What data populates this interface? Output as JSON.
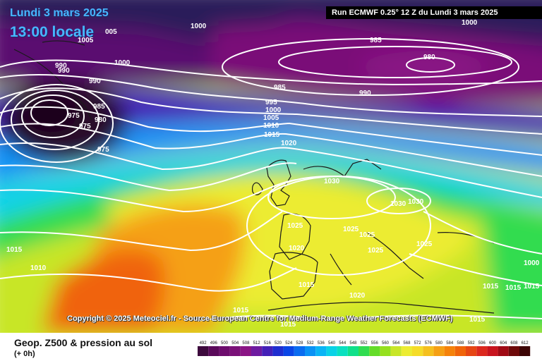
{
  "header": {
    "date": "Lundi 3 mars 2025",
    "local_time": "13:00 locale",
    "run_info": "Run ECMWF 0.25° 12 Z du Lundi 3 mars 2025"
  },
  "copyright": "Copyright © 2025 Meteociel.fr - Source European Centre for Medium-Range Weather Forecasts (ECMWF)",
  "legend": {
    "title": "Geop. Z500 & pression au sol",
    "subtitle": "(+ 0h)",
    "scale_values": [
      "492",
      "496",
      "500",
      "504",
      "508",
      "512",
      "516",
      "520",
      "524",
      "528",
      "532",
      "536",
      "540",
      "544",
      "548",
      "552",
      "556",
      "560",
      "564",
      "568",
      "572",
      "576",
      "580",
      "584",
      "588",
      "592",
      "596",
      "600",
      "604",
      "608",
      "612"
    ],
    "scale_colors": [
      "#3d0a3d",
      "#5a0a5a",
      "#6d0d6d",
      "#7a1078",
      "#8a1585",
      "#6e1aa0",
      "#4420b8",
      "#1f2ed0",
      "#0a46e6",
      "#0a6cf0",
      "#0a92f5",
      "#0ab4f5",
      "#0ad2e6",
      "#0ae0c0",
      "#10e08a",
      "#30dc50",
      "#64dc28",
      "#96e01e",
      "#c8e628",
      "#ecec32",
      "#f5dc28",
      "#f5c01e",
      "#f5a014",
      "#f5820a",
      "#f0640a",
      "#e64614",
      "#dc281e",
      "#c8141e",
      "#a00a14",
      "#6e0a0a",
      "#3c0505"
    ]
  },
  "isobar_labels": [
    {
      "text": "1000",
      "pos": "top-left"
    },
    {
      "text": "005",
      "pos": "top-left"
    },
    {
      "text": "1005",
      "pos": "top-left"
    },
    {
      "text": "1000",
      "pos": "north-atlantic"
    },
    {
      "text": "990",
      "pos": "greenland"
    },
    {
      "text": "990",
      "pos": "greenland"
    },
    {
      "text": "990",
      "pos": "west"
    },
    {
      "text": "985",
      "pos": "low"
    },
    {
      "text": "980",
      "pos": "low"
    },
    {
      "text": "975",
      "pos": "low"
    },
    {
      "text": "975",
      "pos": "low"
    },
    {
      "text": "975",
      "pos": "low"
    },
    {
      "text": "1000",
      "pos": "top"
    },
    {
      "text": "985",
      "pos": "north"
    },
    {
      "text": "980",
      "pos": "north-east"
    },
    {
      "text": "985",
      "pos": "north"
    },
    {
      "text": "990",
      "pos": "north"
    },
    {
      "text": "995",
      "pos": "center"
    },
    {
      "text": "1000",
      "pos": "center"
    },
    {
      "text": "1005",
      "pos": "center"
    },
    {
      "text": "1010",
      "pos": "center"
    },
    {
      "text": "1015",
      "pos": "center"
    },
    {
      "text": "1020",
      "pos": "center"
    },
    {
      "text": "1030",
      "pos": "uk"
    },
    {
      "text": "1030",
      "pos": "europe"
    },
    {
      "text": "1030",
      "pos": "europe"
    },
    {
      "text": "1025",
      "pos": "biscay"
    },
    {
      "text": "1025",
      "pos": "france"
    },
    {
      "text": "1025",
      "pos": "france"
    },
    {
      "text": "1025",
      "pos": "alps"
    },
    {
      "text": "1025",
      "pos": "balkans"
    },
    {
      "text": "1020",
      "pos": "iberia"
    },
    {
      "text": "1015",
      "pos": "west-africa"
    },
    {
      "text": "1010",
      "pos": "atlantic"
    },
    {
      "text": "1015",
      "pos": "med"
    },
    {
      "text": "1020",
      "pos": "africa"
    },
    {
      "text": "1015",
      "pos": "africa"
    },
    {
      "text": "1015",
      "pos": "east"
    },
    {
      "text": "1015",
      "pos": "east"
    },
    {
      "text": "1015",
      "pos": "east"
    },
    {
      "text": "1015",
      "pos": "south"
    },
    {
      "text": "1015",
      "pos": "south"
    },
    {
      "text": "1000",
      "pos": "top-right"
    }
  ]
}
